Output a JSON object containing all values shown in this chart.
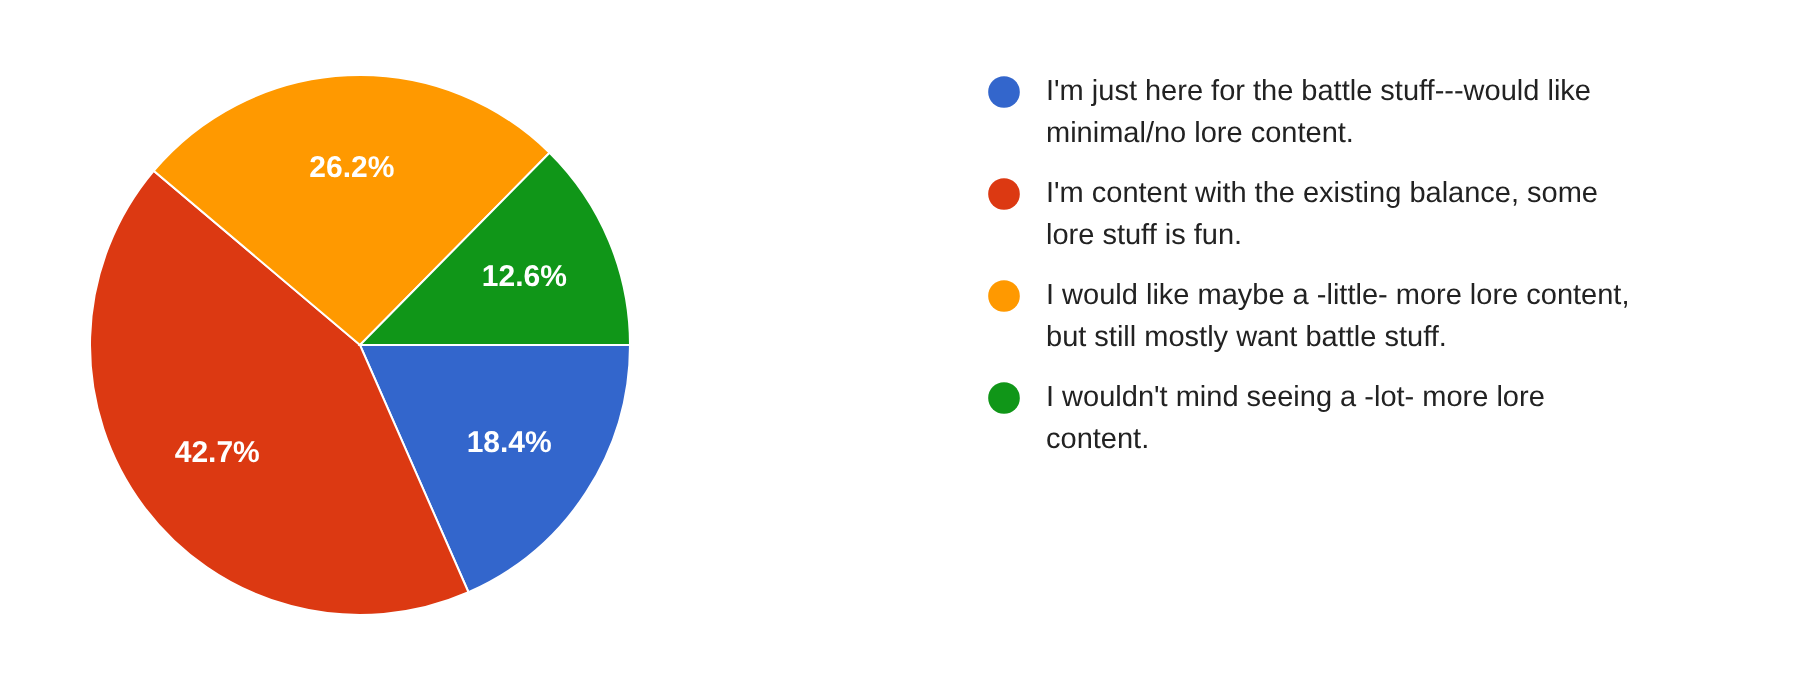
{
  "chart_data": {
    "type": "pie",
    "categories": [
      "I'm just here for the battle stuff---would like minimal/no lore content.",
      "I'm content with the existing balance, some lore stuff is fun.",
      "I would like maybe a -little- more lore content, but still mostly want battle stuff.",
      "I wouldn't mind seeing a -lot- more lore content."
    ],
    "values": [
      18.4,
      42.7,
      26.2,
      12.6
    ],
    "colors": [
      "#3366cc",
      "#dc3912",
      "#ff9900",
      "#109618"
    ],
    "value_labels": [
      "18.4%",
      "42.7%",
      "26.2%",
      "12.6%"
    ],
    "legend": "right"
  }
}
